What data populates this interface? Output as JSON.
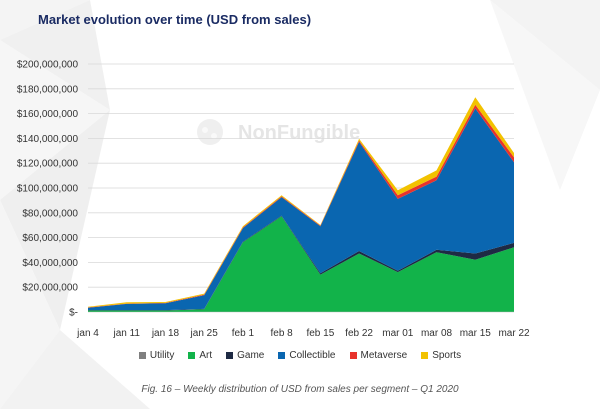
{
  "title": "Market evolution over time (USD from sales)",
  "caption": "Fig. 16 – Weekly distribution of USD from sales per segment – Q1 2020",
  "watermark": "NonFungible",
  "chart_data": {
    "type": "area",
    "stacked": true,
    "title": "Market evolution over time (USD from sales)",
    "categories": [
      "jan 4",
      "jan 11",
      "jan 18",
      "jan 25",
      "feb 1",
      "feb 8",
      "feb 15",
      "feb 22",
      "mar 01",
      "mar 08",
      "mar 15",
      "mar 22"
    ],
    "y_ticks": [
      "$200,000,000",
      "$180,000,000",
      "$160,000,000",
      "$140,000,000",
      "$120,000,000",
      "$100,000,000",
      "$80,000,000",
      "$60,000,000",
      "$40,000,000",
      "$20,000,000",
      "$-"
    ],
    "ylim": [
      0,
      200000000
    ],
    "grid": true,
    "legend_position": "bottom",
    "series": [
      {
        "name": "Utility",
        "color": "#7f7f7f",
        "values": [
          200000,
          200000,
          200000,
          200000,
          200000,
          200000,
          200000,
          200000,
          200000,
          200000,
          200000,
          200000
        ]
      },
      {
        "name": "Art",
        "color": "#12b34a",
        "values": [
          1000000,
          1000000,
          1000000,
          2000000,
          56000000,
          77000000,
          30000000,
          47000000,
          32000000,
          48000000,
          42000000,
          52000000
        ]
      },
      {
        "name": "Game",
        "color": "#1e2a44",
        "values": [
          300000,
          300000,
          300000,
          300000,
          500000,
          500000,
          1000000,
          2000000,
          1000000,
          2000000,
          5000000,
          3500000
        ]
      },
      {
        "name": "Collectible",
        "color": "#0a66b0",
        "values": [
          2000000,
          5000000,
          5500000,
          11000000,
          11000000,
          15000000,
          38000000,
          88000000,
          58000000,
          56000000,
          117000000,
          65000000
        ]
      },
      {
        "name": "Metaverse",
        "color": "#e8332c",
        "values": [
          200000,
          300000,
          300000,
          500000,
          500000,
          500000,
          500000,
          1000000,
          3000000,
          3000000,
          3000000,
          4000000
        ]
      },
      {
        "name": "Sports",
        "color": "#f2c200",
        "values": [
          500000,
          1000000,
          800000,
          800000,
          1000000,
          1000000,
          500000,
          1500000,
          4000000,
          5000000,
          6000000,
          3500000
        ]
      }
    ]
  }
}
